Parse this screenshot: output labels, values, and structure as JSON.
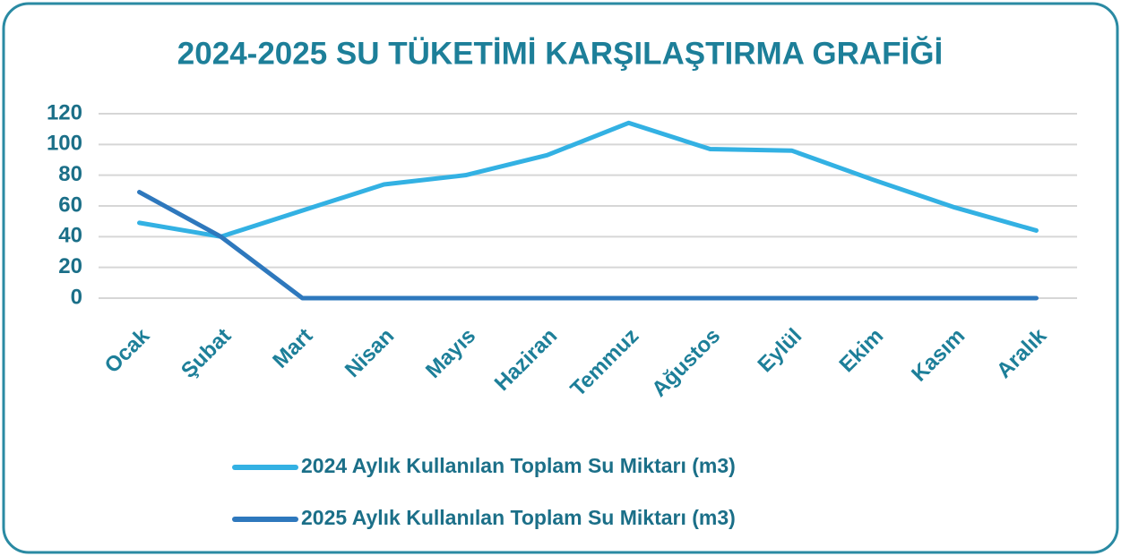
{
  "chart_data": {
    "type": "line",
    "title": "2024-2025 SU TÜKETİMİ KARŞILAŞTIRMA GRAFİĞİ",
    "categories": [
      "Ocak",
      "Şubat",
      "Mart",
      "Nisan",
      "Mayıs",
      "Haziran",
      "Temmuz",
      "Ağustos",
      "Eylül",
      "Ekim",
      "Kasım",
      "Aralık"
    ],
    "series": [
      {
        "name": "2024 Aylık Kullanılan Toplam Su Miktarı (m3)",
        "color": "#33b1e3",
        "values": [
          49,
          40,
          57,
          74,
          80,
          93,
          114,
          97,
          96,
          77,
          59,
          44
        ]
      },
      {
        "name": "2025 Aylık Kullanılan Toplam Su Miktarı (m3)",
        "color": "#2e78bd",
        "values": [
          69,
          40,
          0,
          0,
          0,
          0,
          0,
          0,
          0,
          0,
          0,
          0
        ]
      }
    ],
    "ylim": [
      0,
      120
    ],
    "yticks": [
      0,
      20,
      40,
      60,
      80,
      100,
      120
    ],
    "grid": true,
    "legend": "bottom"
  }
}
